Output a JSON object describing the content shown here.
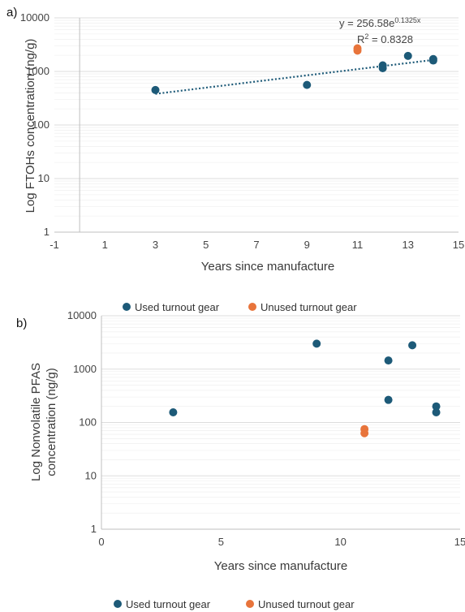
{
  "colors": {
    "used": "#1d5a78",
    "unused": "#e8743b",
    "trend": "#1d5a78",
    "grid": "#dddddd",
    "minor_grid": "#ececec"
  },
  "chart_data": [
    {
      "panel_label": "a)",
      "type": "scatter",
      "scale": "log-y",
      "xlabel": "Years since manufacture",
      "ylabel": "Log FTOHs concentration (ng/g)",
      "xlim": [
        -1,
        15
      ],
      "ylim": [
        1,
        10000
      ],
      "x_ticks": [
        "-1",
        "1",
        "3",
        "5",
        "7",
        "9",
        "11",
        "13",
        "15"
      ],
      "y_ticks": [
        "1",
        "10",
        "100",
        "1000",
        "10000"
      ],
      "series": [
        {
          "key": "used",
          "points": [
            [
              3,
              450
            ],
            [
              9,
              560
            ],
            [
              12,
              1300
            ],
            [
              12,
              1150
            ],
            [
              13,
              1950
            ],
            [
              14,
              1700
            ],
            [
              14,
              1600
            ]
          ]
        },
        {
          "key": "unused",
          "points": [
            [
              11,
              2700
            ],
            [
              11,
              2450
            ]
          ]
        }
      ],
      "trendline": {
        "type": "exponential",
        "a": 256.58,
        "b": 0.1325,
        "x_from": 3,
        "x_to": 14,
        "eq_main": "y = 256.58e",
        "eq_exp": "0.1325x",
        "r2_main": "R",
        "r2_exp": "2",
        "r2_value": " = 0.8328"
      },
      "legend": {
        "position": "none"
      },
      "grid": true
    },
    {
      "panel_label": "b)",
      "type": "scatter",
      "scale": "log-y",
      "xlabel": "Years since manufacture",
      "ylabel_line1": "Log Nonvolatile PFAS",
      "ylabel_line2": "concentration (ng/g)",
      "xlim": [
        0,
        15
      ],
      "ylim": [
        1,
        10000
      ],
      "x_ticks": [
        "0",
        "5",
        "10",
        "15"
      ],
      "y_ticks": [
        "1",
        "10",
        "100",
        "1000",
        "10000"
      ],
      "series": [
        {
          "key": "used",
          "name": "Used turnout gear",
          "points": [
            [
              3,
              155
            ],
            [
              9,
              3000
            ],
            [
              12,
              1450
            ],
            [
              12,
              265
            ],
            [
              13,
              2800
            ],
            [
              14,
              200
            ],
            [
              14,
              155
            ]
          ]
        },
        {
          "key": "unused",
          "name": "Unused turnout gear",
          "points": [
            [
              11,
              75
            ],
            [
              11,
              63
            ]
          ]
        }
      ],
      "legend": {
        "position": "top"
      },
      "grid": true
    }
  ],
  "bottom_legend": {
    "used": "Used turnout gear",
    "unused": "Unused turnout gear"
  }
}
